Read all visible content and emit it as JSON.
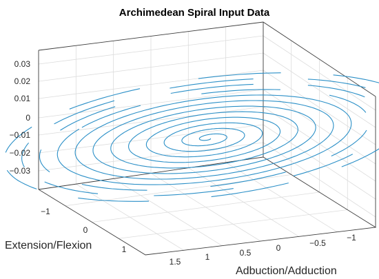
{
  "chart_data": {
    "type": "line3d",
    "title": "Archimedean Spiral Input Data",
    "xlabel": "Adbuction/Adduction",
    "ylabel": "Extension/Flexion",
    "zlabel": "",
    "x_ticks": [
      "1.5",
      "1",
      "0.5",
      "0",
      "−0.5",
      "−1"
    ],
    "y_ticks": [
      "−1",
      "0",
      "1"
    ],
    "z_ticks": [
      "0.03",
      "0.02",
      "0.01",
      "0",
      "−0.01",
      "−0.02",
      "−0.03"
    ],
    "xlim": [
      -1.3,
      1.7
    ],
    "ylim": [
      -1.5,
      1.5
    ],
    "zlim": [
      -0.035,
      0.035
    ],
    "grid": true,
    "series": [
      {
        "style": "dashed-outer-then-solid-inner",
        "color": "#2a8fc7",
        "center": [
          0,
          0,
          0
        ],
        "spacing_per_turn": 0.1,
        "turns": 12,
        "z_constant": 0
      }
    ]
  }
}
